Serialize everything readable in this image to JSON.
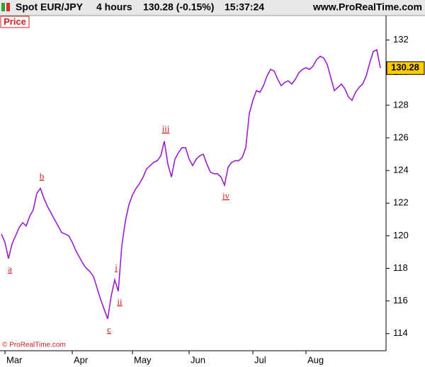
{
  "header": {
    "symbol": "Spot EUR/JPY",
    "interval": "4 hours",
    "quote": "130.28 (-0.15%)",
    "time": "15:37:24",
    "site": "www.ProRealTime.com"
  },
  "chart_data": {
    "type": "line",
    "panel_label": "Price",
    "watermark": "© ProRealTime.com",
    "categories": [
      null,
      "Mar",
      null,
      null,
      null,
      null,
      null,
      null,
      null,
      null,
      null,
      null,
      null,
      null,
      null,
      null,
      null,
      null,
      null,
      null,
      "Apr",
      null,
      null,
      null,
      null,
      null,
      null,
      null,
      null,
      null,
      null,
      null,
      null,
      null,
      null,
      null,
      null,
      "May",
      null,
      null,
      null,
      null,
      null,
      null,
      null,
      null,
      null,
      null,
      null,
      null,
      null,
      null,
      null,
      "Jun",
      null,
      null,
      null,
      null,
      null,
      null,
      null,
      null,
      null,
      null,
      null,
      null,
      null,
      null,
      null,
      null,
      null,
      "Jul",
      null,
      null,
      null,
      null,
      null,
      null,
      null,
      null,
      null,
      null,
      null,
      null,
      null,
      null,
      "Aug",
      null,
      null,
      null,
      null,
      null,
      null,
      null,
      null,
      null,
      null,
      null,
      null,
      null,
      null,
      null,
      null,
      null,
      null,
      null,
      null,
      null
    ],
    "series": [
      {
        "color": "#9a1fd0",
        "values": [
          120.1,
          119.6,
          118.6,
          119.5,
          120.0,
          120.5,
          120.8,
          120.6,
          121.2,
          121.6,
          122.6,
          122.9,
          122.3,
          121.8,
          121.4,
          121.0,
          120.6,
          120.2,
          120.1,
          120.0,
          119.6,
          119.1,
          118.7,
          118.3,
          118.0,
          117.8,
          117.5,
          116.8,
          116.1,
          115.5,
          114.9,
          116.3,
          117.3,
          116.6,
          119.4,
          120.9,
          121.9,
          122.5,
          122.9,
          123.2,
          123.6,
          124.1,
          124.3,
          124.5,
          124.6,
          124.9,
          125.8,
          124.4,
          123.6,
          124.7,
          125.1,
          125.4,
          125.4,
          124.7,
          124.3,
          124.7,
          124.9,
          125.0,
          124.4,
          123.9,
          123.8,
          123.8,
          123.6,
          123.1,
          124.2,
          124.5,
          124.6,
          124.6,
          124.8,
          125.4,
          127.5,
          128.3,
          128.9,
          128.8,
          129.2,
          129.8,
          130.2,
          130.1,
          129.6,
          129.2,
          129.4,
          129.5,
          129.3,
          129.6,
          130.0,
          130.2,
          130.3,
          130.2,
          130.4,
          130.8,
          131.0,
          130.9,
          130.5,
          129.7,
          128.9,
          129.1,
          129.3,
          129.0,
          128.5,
          128.3,
          128.8,
          129.1,
          129.3,
          129.8,
          130.6,
          131.3,
          131.4,
          130.28
        ]
      }
    ],
    "annotations": [
      "a",
      "b",
      "c",
      "i",
      "ii",
      "iii",
      "iv"
    ],
    "ylim": [
      112.95,
      133.5
    ],
    "yticks": [
      114,
      116,
      118,
      120,
      122,
      124,
      126,
      128,
      130,
      132
    ],
    "last_value_color": "#ffcc00"
  }
}
